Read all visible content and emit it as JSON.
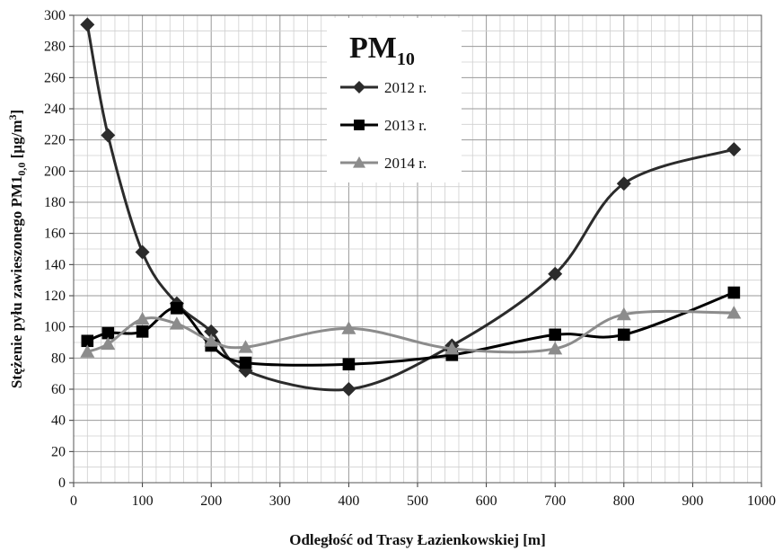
{
  "chart_data": {
    "type": "line",
    "xlabel": "Odległość od Trasy Łazienkowskiej [m]",
    "ylabel": "Stężenie pyłu zawieszonego PM1",
    "ylabel_sub": "0,0",
    "ylabel_tail": " [µg/m",
    "ylabel_sup": "3",
    "ylabel_close": "]",
    "xlim": [
      0,
      1000
    ],
    "ylim": [
      0,
      300
    ],
    "x_ticks": [
      0,
      100,
      200,
      300,
      400,
      500,
      600,
      700,
      800,
      900,
      1000
    ],
    "y_ticks": [
      0,
      20,
      40,
      60,
      80,
      100,
      120,
      140,
      160,
      180,
      200,
      220,
      240,
      260,
      280,
      300
    ],
    "x_tick_labels": [
      "0",
      "100",
      "200",
      "300",
      "400",
      "500",
      "600",
      "700",
      "800",
      "900",
      "1000"
    ],
    "y_tick_labels": [
      "0",
      "20",
      "40",
      "60",
      "80",
      "100",
      "120",
      "140",
      "160",
      "180",
      "200",
      "220",
      "240",
      "260",
      "280",
      "300"
    ],
    "grid": true,
    "legend": {
      "title": "PM",
      "title_sub": "10",
      "placement": "top-center"
    },
    "series": [
      {
        "name": "2012 r.",
        "marker": "diamond",
        "color": "#2b2b2b",
        "x": [
          20,
          50,
          100,
          150,
          200,
          250,
          400,
          550,
          700,
          800,
          960
        ],
        "y": [
          294,
          223,
          148,
          115,
          97,
          72,
          60,
          88,
          134,
          192,
          214
        ]
      },
      {
        "name": "2013 r.",
        "marker": "square",
        "color": "#000000",
        "x": [
          20,
          50,
          100,
          150,
          200,
          250,
          400,
          550,
          700,
          800,
          960
        ],
        "y": [
          91,
          96,
          97,
          112,
          88,
          77,
          76,
          82,
          95,
          95,
          122
        ]
      },
      {
        "name": "2014 r.",
        "marker": "triangle",
        "color": "#8c8c8c",
        "x": [
          20,
          50,
          100,
          150,
          200,
          250,
          400,
          550,
          700,
          800,
          960
        ],
        "y": [
          84,
          89,
          105,
          102,
          91,
          87,
          99,
          86,
          86,
          108,
          109
        ]
      }
    ]
  }
}
